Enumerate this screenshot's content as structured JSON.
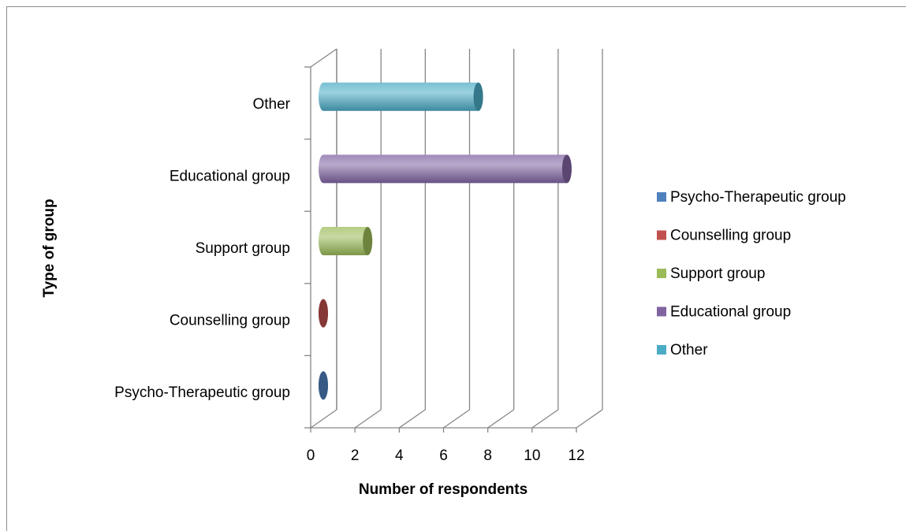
{
  "chart_data": {
    "type": "bar3d-horizontal",
    "categories": [
      "Psycho-Therapeutic group",
      "Counselling group",
      "Support group",
      "Educational group",
      "Other"
    ],
    "values": [
      0,
      0,
      2,
      11,
      7
    ],
    "colors": [
      "#4f81bd",
      "#c0504d",
      "#9bbb59",
      "#8064a2",
      "#4bacc6"
    ],
    "xlim": [
      0,
      12
    ],
    "xticks": [
      0,
      2,
      4,
      6,
      8,
      10,
      12
    ],
    "xlabel": "Number of respondents",
    "ylabel": "Type of group",
    "grid": true,
    "legend": "right"
  }
}
